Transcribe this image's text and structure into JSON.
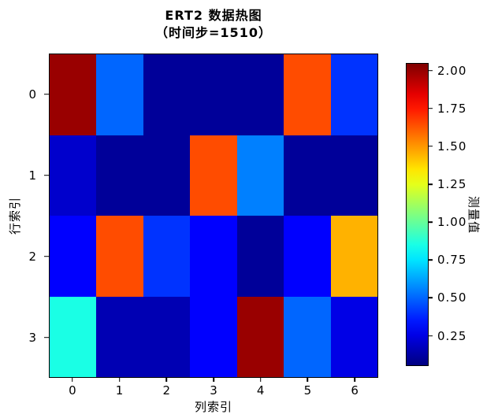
{
  "title": "ERT2 数据热图",
  "subtitle": "（时间步=1510）",
  "chart_data": {
    "type": "heatmap",
    "title": "ERT2 数据热图（时间步=1510）",
    "xlabel": "列索引",
    "ylabel": "行索引",
    "colorbar_label": "测量值",
    "colormap": "jet",
    "x_ticks": [
      "0",
      "1",
      "2",
      "3",
      "4",
      "5",
      "6"
    ],
    "y_ticks": [
      "0",
      "1",
      "2",
      "3"
    ],
    "vmin": 0.05,
    "vmax": 2.05,
    "colorbar_ticks": [
      0.25,
      0.5,
      0.75,
      1.0,
      1.25,
      1.5,
      1.75,
      2.0
    ],
    "values": [
      [
        2.0,
        0.5,
        0.1,
        0.1,
        0.1,
        1.65,
        0.4
      ],
      [
        0.2,
        0.1,
        0.1,
        1.65,
        0.55,
        0.1,
        0.1
      ],
      [
        0.3,
        1.65,
        0.4,
        0.3,
        0.1,
        0.3,
        1.45
      ],
      [
        0.85,
        0.15,
        0.15,
        0.3,
        2.0,
        0.5,
        0.25
      ]
    ]
  }
}
